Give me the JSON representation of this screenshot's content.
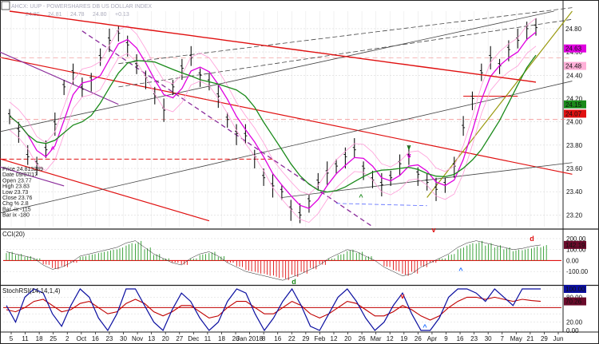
{
  "header": {
    "symbol": "UUP",
    "title": "AHCX: UUP  - POWERSHARES DB US DOLLAR INDEX",
    "fields": [
      "24.80",
      "24.81",
      "24.78",
      "24.80",
      "+0.13"
    ]
  },
  "info_box": {
    "lines": [
      "Price  24.813289",
      "Date   09/07/17",
      "Open   23.77",
      "High   23.83",
      "Low    23.73",
      "Close  23.76",
      "Chg %  2.8",
      "Bar -ix  -115",
      "Bar ix  -180"
    ]
  },
  "colors": {
    "bar": "#111111",
    "ma_fast": "#e000e0",
    "ma_mid": "#1a8a1a",
    "ma_slow": "#e01010",
    "band": "#ff9ad8",
    "channel": "#444444",
    "purple": "#8a2a9a",
    "olive": "#9a9a10",
    "osc_up": "#2a9a2a",
    "osc_down": "#e01010",
    "stoch_blue": "#0b0fa0",
    "stoch_red": "#c00000",
    "signal_up": "#1a6aff",
    "marker_red": "#e01010",
    "marker_green": "#1a8a1a"
  },
  "chart_data": [
    {
      "type": "line",
      "subtype": "ohlc",
      "title": "UUP - PowerShares DB US Dollar Index",
      "x_tick_labels": [
        "5",
        "11",
        "18",
        "25",
        "2",
        "Oct",
        "16",
        "23",
        "30",
        "Nov",
        "13",
        "20",
        "27",
        "Dec",
        "11",
        "18",
        "26",
        "Jan 2018",
        "8",
        "16",
        "22",
        "29",
        "Feb",
        "12",
        "20",
        "26",
        "Mar",
        "12",
        "19",
        "26",
        "Apr",
        "9",
        "16",
        "23",
        "30",
        "7",
        "May",
        "21",
        "29",
        "Jun"
      ],
      "y_ticks": [
        "23.20",
        "23.40",
        "23.60",
        "23.80",
        "24.00",
        "24.20",
        "24.40",
        "24.60",
        "24.80"
      ],
      "ylim": [
        23.1,
        24.95
      ],
      "date_range": [
        "2017-09-05",
        "2018-05-30"
      ],
      "series": [
        {
          "name": "Price",
          "values": [
            24.05,
            23.92,
            23.7,
            23.64,
            23.76,
            23.98,
            24.3,
            24.42,
            24.28,
            24.36,
            24.55,
            24.7,
            24.76,
            24.66,
            24.48,
            24.38,
            24.22,
            24.1,
            24.3,
            24.46,
            24.55,
            24.4,
            24.34,
            24.22,
            24.02,
            23.9,
            23.88,
            23.7,
            23.52,
            23.45,
            23.4,
            23.25,
            23.2,
            23.32,
            23.48,
            23.56,
            23.62,
            23.7,
            23.76,
            23.6,
            23.5,
            23.46,
            23.52,
            23.64,
            23.7,
            23.55,
            23.48,
            23.42,
            23.46,
            23.62,
            23.95,
            24.2,
            24.42,
            24.55,
            24.48,
            24.62,
            24.7,
            24.8,
            24.81
          ]
        }
      ],
      "overlay_labels": [
        "24.80",
        "24.63",
        "24.48",
        "24.15",
        "24.07"
      ]
    },
    {
      "type": "bar",
      "title": "CCI(20)",
      "y_ticks": [
        "-100.00",
        "0.00",
        "100.00",
        "200.00"
      ],
      "ylim": [
        -200,
        250
      ],
      "last_value": "142.19",
      "values": [
        80,
        60,
        40,
        20,
        -40,
        -80,
        -60,
        -20,
        40,
        60,
        80,
        100,
        120,
        160,
        180,
        120,
        60,
        20,
        -20,
        -40,
        20,
        60,
        80,
        40,
        -20,
        -60,
        -100,
        -120,
        -140,
        -160,
        -180,
        -150,
        -120,
        -80,
        -40,
        20,
        60,
        100,
        80,
        40,
        0,
        -60,
        -100,
        -140,
        -120,
        -60,
        -20,
        20,
        60,
        120,
        160,
        180,
        160,
        140,
        120,
        100,
        110,
        130,
        142
      ]
    },
    {
      "type": "line",
      "title": "StochRSI(14,14,1,4)",
      "y_ticks": [
        "0.00",
        "20.00",
        "40.00",
        "60.00",
        "80.00",
        "100.00"
      ],
      "ylim": [
        0,
        100
      ],
      "series": [
        {
          "name": "StochRSI",
          "last_value": "100.00",
          "values": [
            60,
            20,
            80,
            100,
            90,
            40,
            10,
            60,
            100,
            80,
            30,
            0,
            40,
            100,
            100,
            60,
            20,
            0,
            50,
            90,
            70,
            30,
            0,
            20,
            70,
            100,
            90,
            40,
            0,
            30,
            70,
            100,
            60,
            10,
            0,
            40,
            80,
            100,
            70,
            30,
            0,
            20,
            60,
            90,
            40,
            0,
            0,
            30,
            80,
            100,
            100,
            90,
            70,
            100,
            80,
            60,
            100,
            100,
            100
          ]
        },
        {
          "name": "Signal",
          "last_value": "70.26",
          "values": [
            50,
            45,
            55,
            70,
            75,
            60,
            45,
            50,
            65,
            70,
            55,
            40,
            45,
            65,
            75,
            65,
            45,
            35,
            45,
            60,
            60,
            45,
            30,
            35,
            55,
            70,
            70,
            55,
            40,
            40,
            55,
            70,
            60,
            40,
            30,
            40,
            55,
            70,
            65,
            50,
            35,
            35,
            45,
            60,
            50,
            35,
            25,
            35,
            55,
            70,
            80,
            80,
            75,
            80,
            75,
            70,
            75,
            72,
            70
          ]
        }
      ]
    }
  ]
}
